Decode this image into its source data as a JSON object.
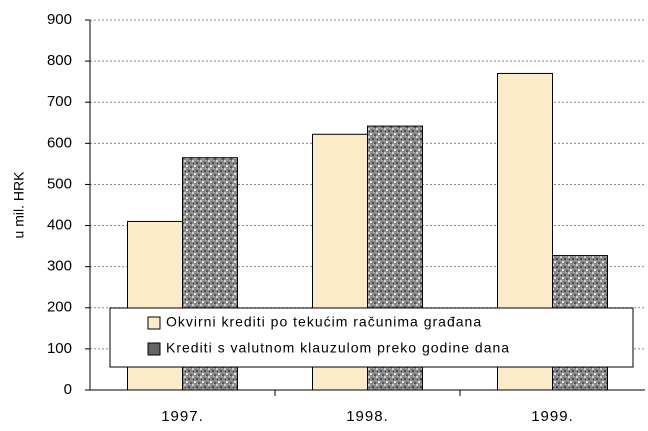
{
  "chart_data": {
    "type": "bar",
    "categories": [
      "1997.",
      "1998.",
      "1999."
    ],
    "series": [
      {
        "name": "Okvirni krediti po tekućim računima građana",
        "color": "#fbebc8",
        "values": [
          410,
          622,
          770
        ]
      },
      {
        "name": "Krediti s valutnom klauzulom preko godine dana",
        "color": "#8a8a8a",
        "values": [
          565,
          642,
          327
        ]
      }
    ],
    "ylabel": "u mil. HRK",
    "ylim": [
      0,
      900
    ],
    "yticks": [
      0,
      100,
      200,
      300,
      400,
      500,
      600,
      700,
      800,
      900
    ],
    "grid": true
  }
}
